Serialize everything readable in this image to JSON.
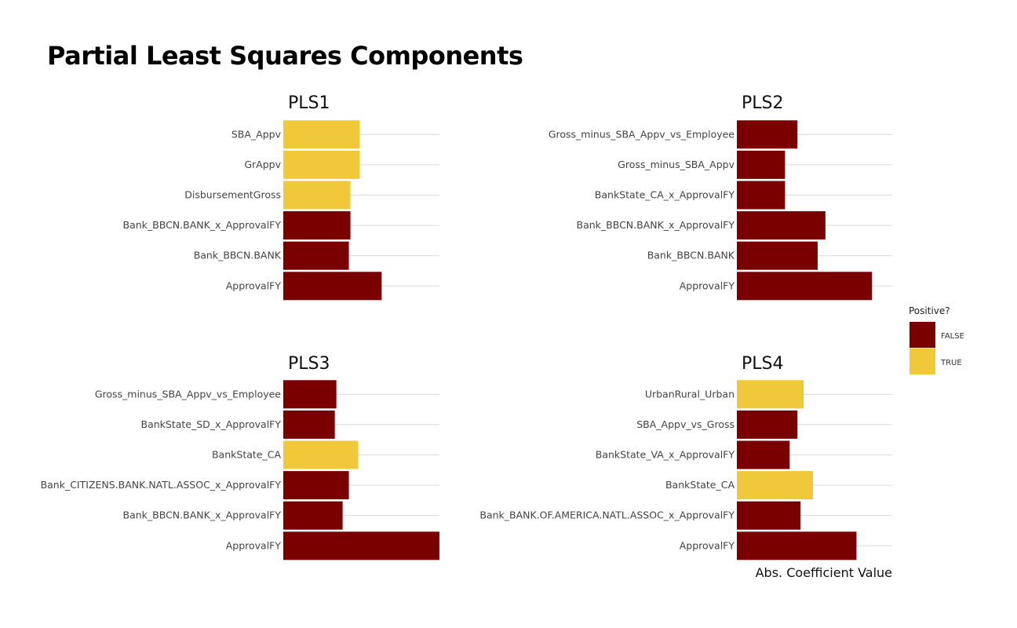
{
  "chart_data": {
    "type": "bar",
    "title": "Partial Least Squares Components",
    "xlabel": "Abs. Coefficient Value",
    "xlim": [
      0,
      1
    ],
    "orientation": "horizontal",
    "grid": true,
    "legend": {
      "title": "Positive?",
      "placement": "right",
      "entries": [
        {
          "label": "FALSE",
          "color": "#7a0000"
        },
        {
          "label": "TRUE",
          "color": "#f0c93a"
        }
      ]
    },
    "panels": [
      {
        "title": "PLS1",
        "categories": [
          "SBA_Appv",
          "GrAppv",
          "DisbursementGross",
          "Bank_BBCN.BANK_x_ApprovalFY",
          "Bank_BBCN.BANK",
          "ApprovalFY"
        ],
        "values": [
          0.49,
          0.49,
          0.43,
          0.43,
          0.42,
          0.63
        ],
        "positive": [
          "TRUE",
          "TRUE",
          "TRUE",
          "FALSE",
          "FALSE",
          "FALSE"
        ]
      },
      {
        "title": "PLS2",
        "categories": [
          "Gross_minus_SBA_Appv_vs_Employee",
          "Gross_minus_SBA_Appv",
          "BankState_CA_x_ApprovalFY",
          "Bank_BBCN.BANK_x_ApprovalFY",
          "Bank_BBCN.BANK",
          "ApprovalFY"
        ],
        "values": [
          0.39,
          0.31,
          0.31,
          0.57,
          0.52,
          0.87
        ],
        "positive": [
          "FALSE",
          "FALSE",
          "FALSE",
          "FALSE",
          "FALSE",
          "FALSE"
        ]
      },
      {
        "title": "PLS3",
        "categories": [
          "Gross_minus_SBA_Appv_vs_Employee",
          "BankState_SD_x_ApprovalFY",
          "BankState_CA",
          "Bank_CITIZENS.BANK.NATL.ASSOC_x_ApprovalFY",
          "Bank_BBCN.BANK_x_ApprovalFY",
          "ApprovalFY"
        ],
        "values": [
          0.34,
          0.33,
          0.48,
          0.42,
          0.38,
          1.0
        ],
        "positive": [
          "FALSE",
          "FALSE",
          "TRUE",
          "FALSE",
          "FALSE",
          "FALSE"
        ]
      },
      {
        "title": "PLS4",
        "categories": [
          "UrbanRural_Urban",
          "SBA_Appv_vs_Gross",
          "BankState_VA_x_ApprovalFY",
          "BankState_CA",
          "Bank_BANK.OF.AMERICA.NATL.ASSOC_x_ApprovalFY",
          "ApprovalFY"
        ],
        "values": [
          0.43,
          0.39,
          0.34,
          0.49,
          0.41,
          0.77
        ],
        "positive": [
          "TRUE",
          "FALSE",
          "FALSE",
          "TRUE",
          "FALSE",
          "FALSE"
        ]
      }
    ]
  }
}
